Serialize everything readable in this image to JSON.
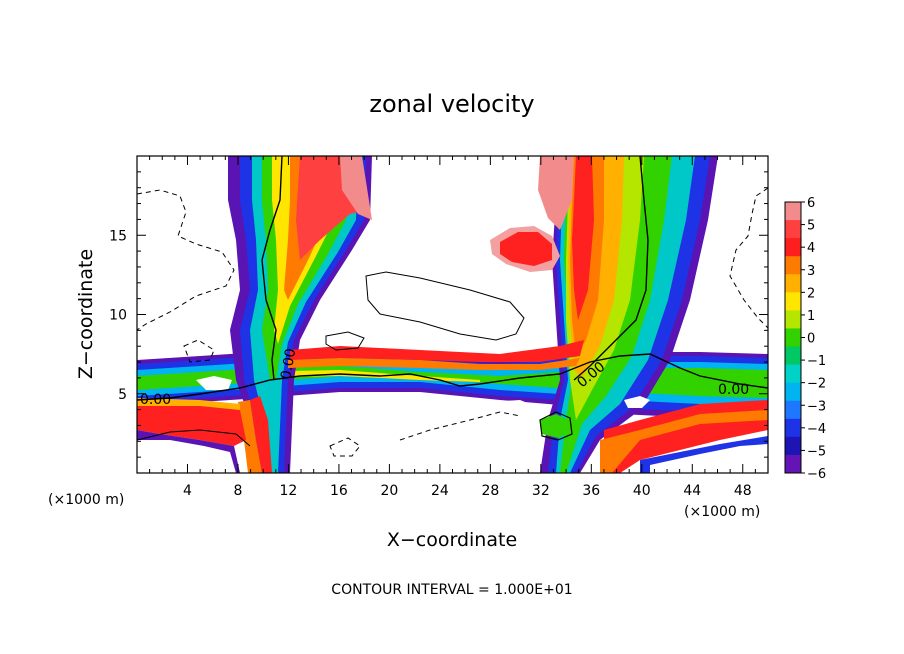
{
  "chart_data": {
    "type": "heatmap",
    "title": "zonal velocity",
    "xlabel": "X−coordinate",
    "ylabel": "Z−coordinate",
    "x_unit_left": "(×1000 m)",
    "x_unit_right": "(×1000 m)",
    "footer": "CONTOUR INTERVAL = 1.000E+01",
    "xlim": [
      0,
      50
    ],
    "ylim": [
      0,
      20
    ],
    "xticks": [
      4,
      8,
      12,
      16,
      20,
      24,
      28,
      32,
      36,
      40,
      44,
      48
    ],
    "xtick_labels": [
      "4",
      "8",
      "12",
      "16",
      "20",
      "24",
      "28",
      "32",
      "36",
      "40",
      "44",
      "48"
    ],
    "yticks": [
      5,
      10,
      15
    ],
    "ytick_labels": [
      "5",
      "10",
      "15"
    ],
    "colorbar": {
      "range": [
        -6,
        6
      ],
      "labels": [
        "6",
        "5",
        "4",
        "3",
        "2",
        "1",
        "0",
        "−1",
        "−2",
        "−3",
        "−4",
        "−5",
        "−6"
      ],
      "colors": [
        "#f28c8c",
        "#ff4040",
        "#ff1e1e",
        "#ff7a00",
        "#ffb000",
        "#ffe600",
        "#b4e600",
        "#32d200",
        "#00c864",
        "#00d2c8",
        "#00b4f0",
        "#1e78ff",
        "#1e32e6",
        "#1e14b4",
        "#6414b4"
      ]
    },
    "contour_labels": [
      {
        "text": "0.00",
        "x": 11.2,
        "z": 7.0
      },
      {
        "text": "0.00",
        "x": 1.5,
        "z": 4.6
      },
      {
        "text": "0.00",
        "x": 35.8,
        "z": 6.8
      },
      {
        "text": "0.00",
        "x": 46.2,
        "z": 5.2
      }
    ],
    "features": {
      "low_layer": [
        [
          0,
          5.8
        ],
        [
          4,
          6.2
        ],
        [
          8,
          6.8
        ],
        [
          12,
          6.6
        ],
        [
          16,
          6.5
        ],
        [
          20,
          6.3
        ],
        [
          24,
          5.6
        ],
        [
          28,
          5.2
        ],
        [
          32,
          5.6
        ],
        [
          36,
          6.5
        ],
        [
          40,
          6.8
        ],
        [
          44,
          6.6
        ],
        [
          48,
          6.9
        ],
        [
          50,
          7.0
        ]
      ],
      "plume_left": {
        "x0": 10.5,
        "x1": 13.0,
        "z0": 6.0,
        "z1": 20.0
      },
      "plume_right": {
        "x0": 32.0,
        "x1": 41.0,
        "z0": 5.0,
        "z1": 20.0
      },
      "updraft_blob": {
        "x": 31.0,
        "z": 14.2,
        "value": 4.5
      }
    }
  }
}
